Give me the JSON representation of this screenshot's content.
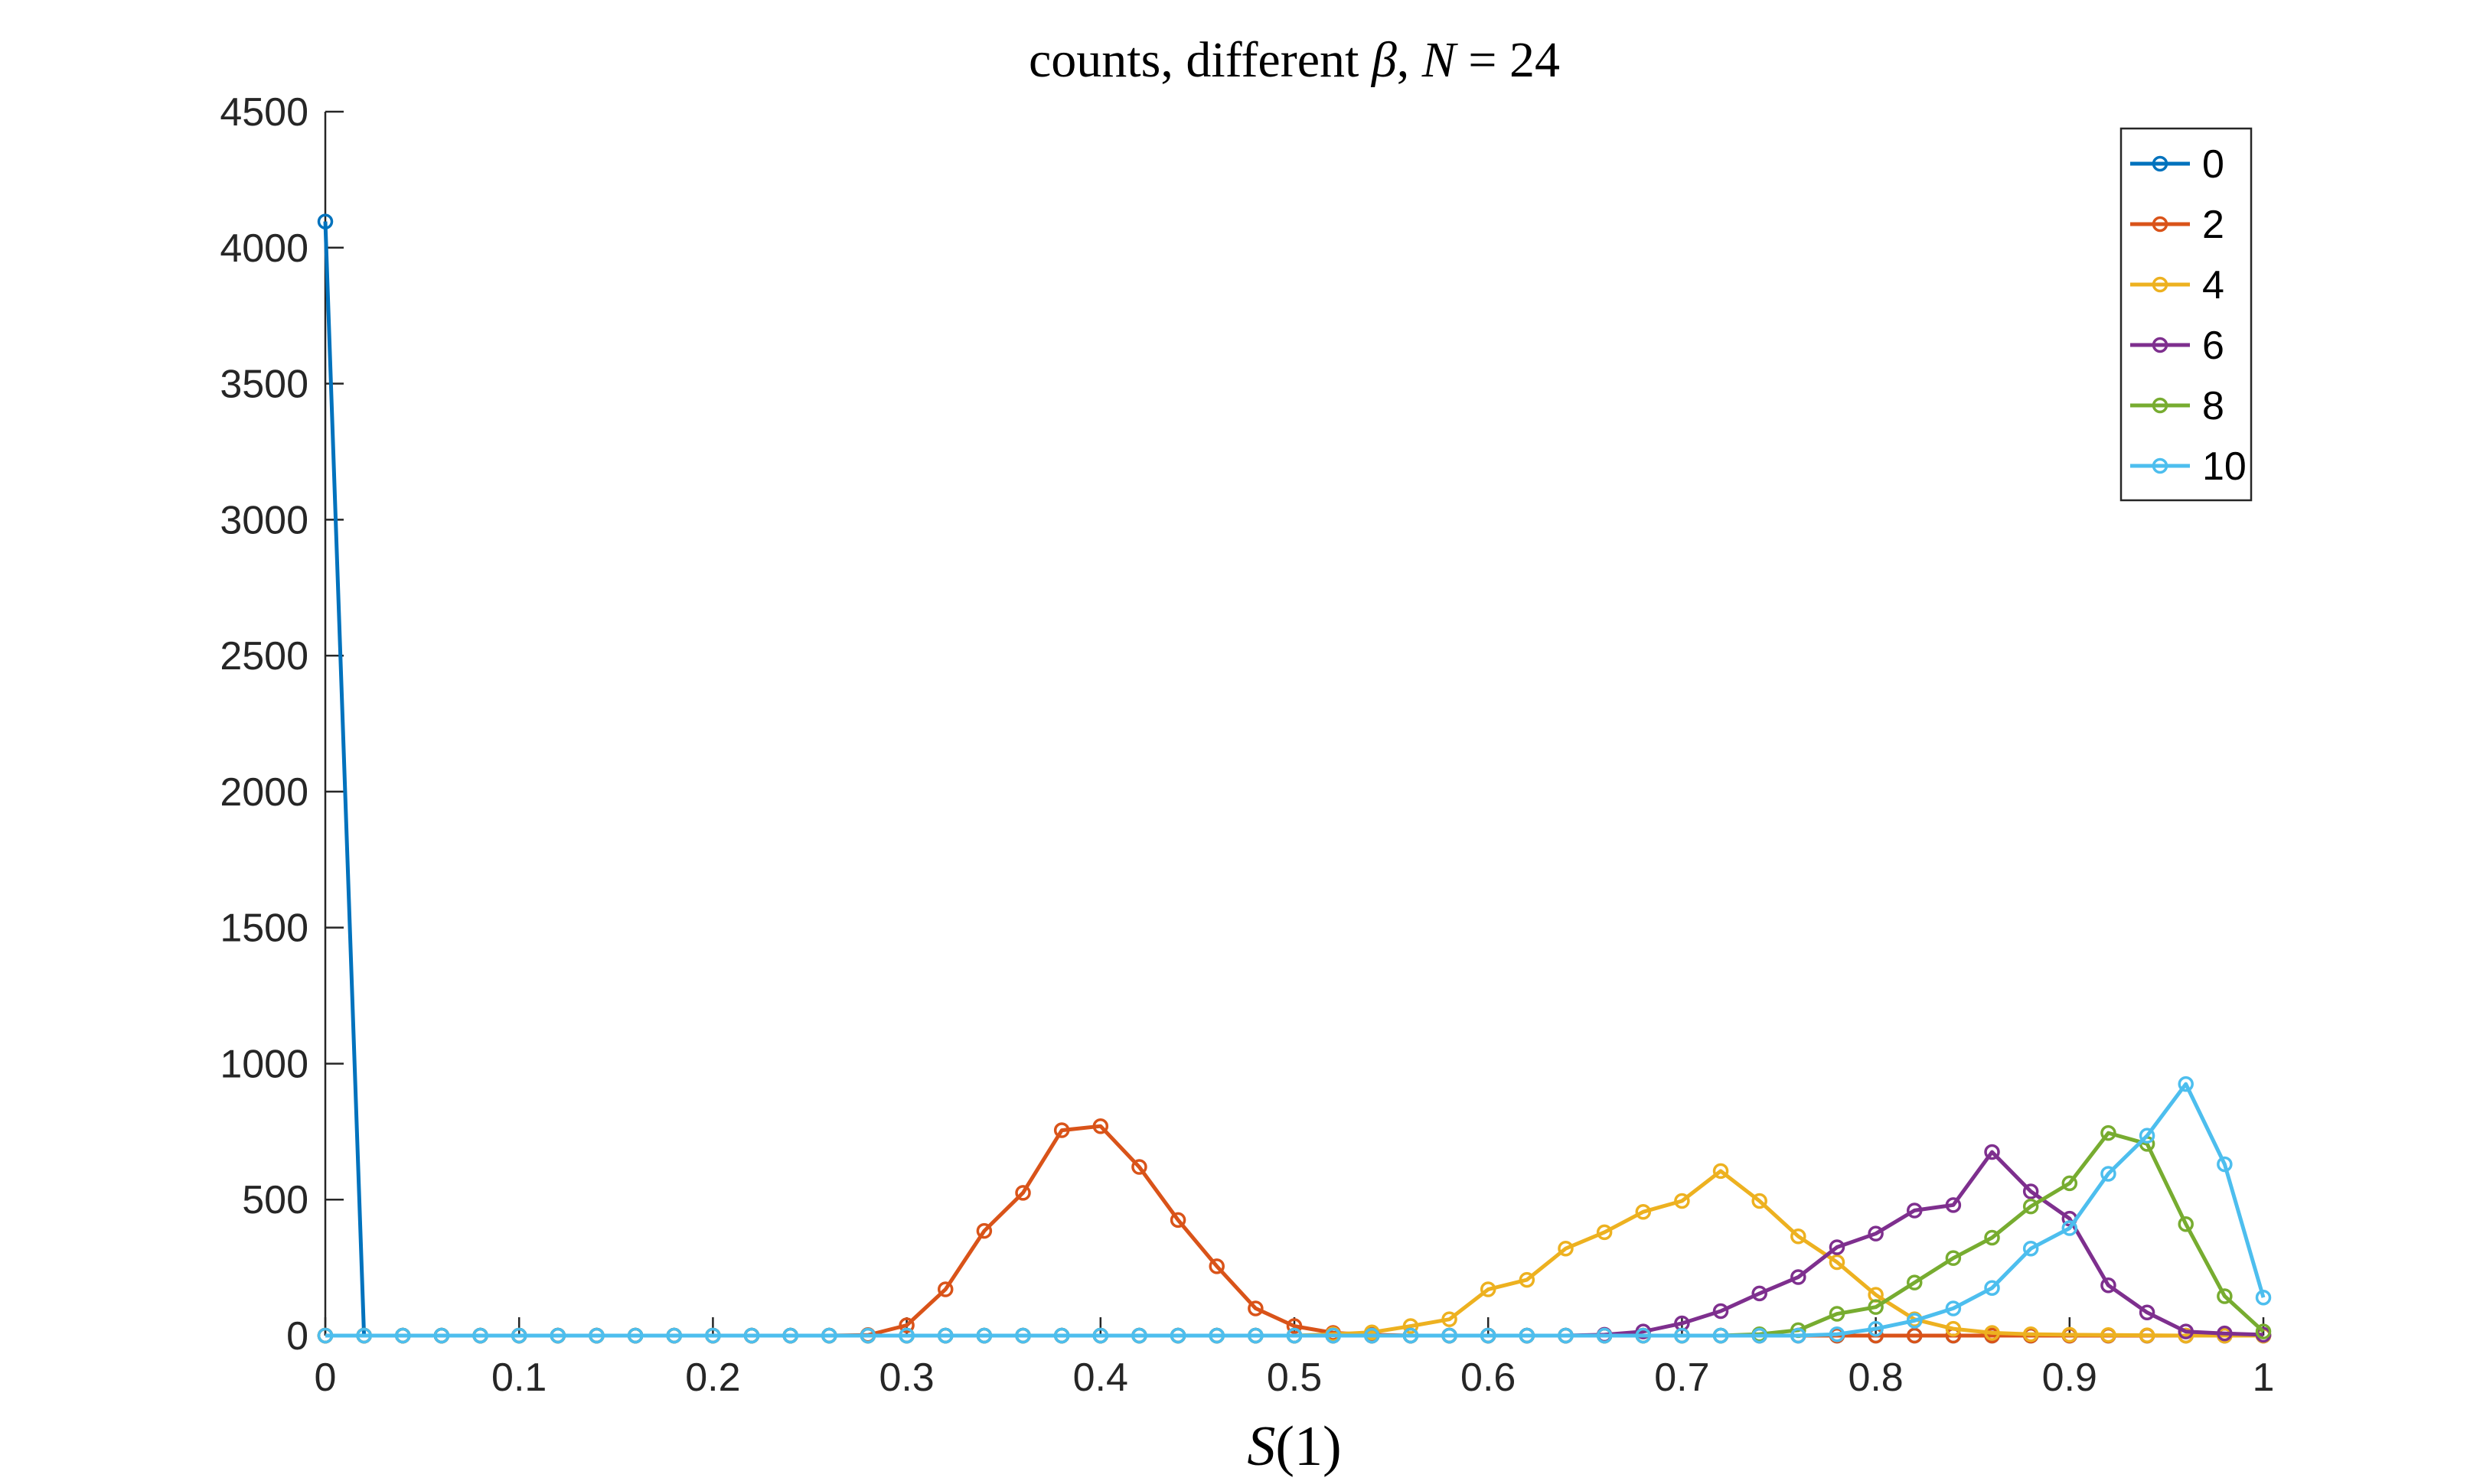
{
  "chart_data": {
    "type": "line",
    "title": "counts, different β, N = 24",
    "xlabel": "S(1)",
    "ylabel": "",
    "xlim": [
      0,
      1
    ],
    "ylim": [
      0,
      4500
    ],
    "xticks": [
      "0",
      "0.1",
      "0.2",
      "0.3",
      "0.4",
      "0.5",
      "0.6",
      "0.7",
      "0.8",
      "0.9",
      "1"
    ],
    "yticks": [
      "0",
      "500",
      "1000",
      "1500",
      "2000",
      "2500",
      "3000",
      "3500",
      "4000",
      "4500"
    ],
    "grid": false,
    "legend_position": "top-right",
    "x": [
      0,
      0.02,
      0.04,
      0.06,
      0.08,
      0.1,
      0.12,
      0.14,
      0.16,
      0.18,
      0.2,
      0.22,
      0.24,
      0.26,
      0.28,
      0.3,
      0.32,
      0.34,
      0.36,
      0.38,
      0.4,
      0.42,
      0.44,
      0.46,
      0.48,
      0.5,
      0.52,
      0.54,
      0.56,
      0.58,
      0.6,
      0.62,
      0.64,
      0.66,
      0.68,
      0.7,
      0.72,
      0.74,
      0.76,
      0.78,
      0.8,
      0.82,
      0.84,
      0.86,
      0.88,
      0.9,
      0.92,
      0.94,
      0.96,
      0.98,
      1
    ],
    "series": [
      {
        "name": "0",
        "color": "#0072BD",
        "values": [
          4096,
          0,
          0,
          0,
          0,
          0,
          0,
          0,
          0,
          0,
          0,
          0,
          0,
          0,
          0,
          0,
          0,
          0,
          0,
          0,
          0,
          0,
          0,
          0,
          0,
          0,
          0,
          0,
          0,
          0,
          0,
          0,
          0,
          0,
          0,
          0,
          0,
          0,
          0,
          0,
          0,
          0,
          0,
          0,
          0,
          0,
          0,
          0,
          0,
          0,
          0
        ]
      },
      {
        "name": "2",
        "color": "#D95319",
        "values": [
          0,
          0,
          0,
          0,
          0,
          0,
          0,
          0,
          0,
          0,
          0,
          0,
          0,
          0,
          2,
          38,
          170,
          385,
          525,
          755,
          770,
          620,
          425,
          255,
          100,
          35,
          10,
          3,
          0,
          0,
          0,
          0,
          0,
          0,
          0,
          0,
          0,
          0,
          0,
          0,
          0,
          0,
          0,
          0,
          0,
          0,
          0,
          0,
          0,
          0,
          0
        ]
      },
      {
        "name": "4",
        "color": "#EDB120",
        "values": [
          0,
          0,
          0,
          0,
          0,
          0,
          0,
          0,
          0,
          0,
          0,
          0,
          0,
          0,
          0,
          0,
          0,
          0,
          0,
          0,
          0,
          0,
          0,
          0,
          0,
          0,
          5,
          12,
          35,
          60,
          170,
          205,
          320,
          380,
          455,
          495,
          605,
          495,
          365,
          270,
          150,
          60,
          25,
          10,
          5,
          3,
          2,
          1,
          0,
          0,
          0
        ]
      },
      {
        "name": "6",
        "color": "#7E2F8E",
        "values": [
          0,
          0,
          0,
          0,
          0,
          0,
          0,
          0,
          0,
          0,
          0,
          0,
          0,
          0,
          0,
          0,
          0,
          0,
          0,
          0,
          0,
          0,
          0,
          0,
          0,
          0,
          0,
          0,
          0,
          0,
          0,
          0,
          0,
          3,
          15,
          45,
          90,
          155,
          215,
          325,
          375,
          460,
          480,
          675,
          530,
          430,
          185,
          85,
          15,
          8,
          3
        ]
      },
      {
        "name": "8",
        "color": "#77AC30",
        "values": [
          0,
          0,
          0,
          0,
          0,
          0,
          0,
          0,
          0,
          0,
          0,
          0,
          0,
          0,
          0,
          0,
          0,
          0,
          0,
          0,
          0,
          0,
          0,
          0,
          0,
          0,
          0,
          0,
          0,
          0,
          0,
          0,
          0,
          0,
          0,
          0,
          0,
          5,
          20,
          80,
          105,
          195,
          285,
          360,
          475,
          560,
          745,
          705,
          410,
          145,
          15
        ]
      },
      {
        "name": "10",
        "color": "#4DBEEE",
        "values": [
          0,
          0,
          0,
          0,
          0,
          0,
          0,
          0,
          0,
          0,
          0,
          0,
          0,
          0,
          0,
          0,
          0,
          0,
          0,
          0,
          0,
          0,
          0,
          0,
          0,
          0,
          0,
          0,
          0,
          0,
          0,
          0,
          0,
          0,
          0,
          0,
          0,
          0,
          0,
          5,
          25,
          55,
          100,
          175,
          320,
          395,
          595,
          735,
          925,
          630,
          140
        ]
      }
    ]
  }
}
